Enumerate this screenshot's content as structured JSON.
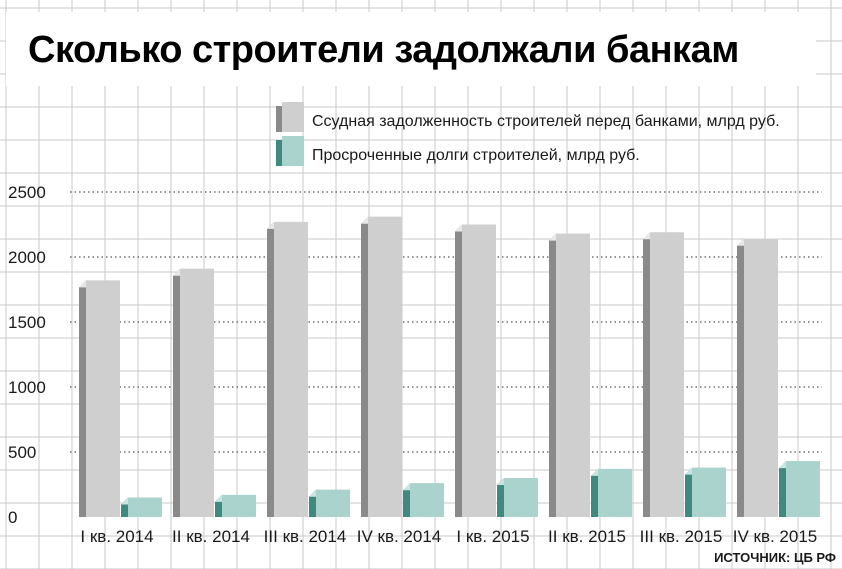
{
  "chart_data": {
    "type": "bar",
    "title": "Сколько строители задолжали банкам",
    "categories": [
      "I кв. 2014",
      "II кв. 2014",
      "III кв. 2014",
      "IV кв. 2014",
      "I кв. 2015",
      "II кв. 2015",
      "III кв. 2015",
      "IV кв. 2015"
    ],
    "series": [
      {
        "name": "Ссудная задолженность строителей перед банками, млрд руб.",
        "values": [
          1820,
          1910,
          2270,
          2310,
          2250,
          2180,
          2190,
          2140
        ],
        "color": "#cfcfcf"
      },
      {
        "name": "Просроченные долги строителей, млрд руб.",
        "values": [
          150,
          170,
          210,
          260,
          300,
          370,
          380,
          430
        ],
        "color": "#a9d3cc"
      }
    ],
    "yticks": [
      0,
      500,
      1000,
      1500,
      2000,
      2500
    ],
    "ylim": [
      0,
      2500
    ],
    "grid": true,
    "legend_position": "top-right",
    "source": "ИСТОЧНИК: ЦБ РФ"
  }
}
